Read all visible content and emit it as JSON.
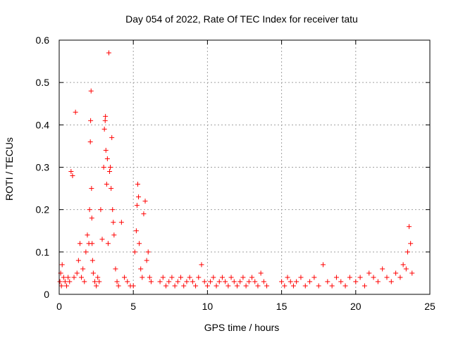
{
  "chart_data": {
    "type": "scatter",
    "title": "Day 054 of 2022, Rate Of TEC Index for receiver tatu",
    "xlabel": "GPS time / hours",
    "ylabel": "ROTI / TECUs",
    "xlim": [
      0,
      25
    ],
    "ylim": [
      0,
      0.6
    ],
    "xticks": [
      "0",
      "5",
      "10",
      "15",
      "20",
      "25"
    ],
    "yticks": [
      "0",
      "0.1",
      "0.2",
      "0.3",
      "0.4",
      "0.5",
      "0.6"
    ],
    "grid": true,
    "marker": "+",
    "marker_color": "#ff0000",
    "series": [
      {
        "name": "ROTI",
        "x": [
          0.05,
          0.1,
          0.15,
          0.2,
          0.3,
          0.4,
          0.5,
          0.6,
          0.7,
          0.8,
          0.9,
          1.0,
          1.1,
          1.2,
          1.3,
          1.4,
          1.5,
          1.6,
          1.7,
          1.8,
          1.9,
          2.0,
          2.05,
          2.1,
          2.12,
          2.15,
          2.18,
          2.2,
          2.22,
          2.25,
          2.3,
          2.4,
          2.5,
          2.6,
          2.7,
          2.8,
          2.9,
          3.0,
          3.05,
          3.1,
          3.12,
          3.15,
          3.2,
          3.25,
          3.3,
          3.35,
          3.4,
          3.45,
          3.5,
          3.55,
          3.6,
          3.65,
          3.7,
          3.8,
          3.9,
          4.0,
          4.2,
          4.4,
          4.6,
          4.8,
          5.0,
          5.1,
          5.2,
          5.25,
          5.3,
          5.35,
          5.4,
          5.5,
          5.6,
          5.7,
          5.8,
          5.9,
          6.0,
          6.1,
          6.2,
          6.8,
          7.0,
          7.2,
          7.4,
          7.6,
          7.8,
          8.0,
          8.2,
          8.4,
          8.6,
          8.8,
          9.0,
          9.2,
          9.4,
          9.6,
          9.8,
          10.0,
          10.2,
          10.4,
          10.6,
          10.8,
          11.0,
          11.2,
          11.4,
          11.6,
          11.8,
          12.0,
          12.2,
          12.4,
          12.6,
          12.8,
          13.0,
          13.2,
          13.4,
          13.6,
          13.8,
          14.0,
          15.0,
          15.2,
          15.4,
          15.6,
          15.8,
          16.0,
          16.3,
          16.6,
          16.9,
          17.2,
          17.5,
          17.8,
          18.1,
          18.4,
          18.7,
          19.0,
          19.3,
          19.6,
          20.0,
          20.3,
          20.6,
          20.9,
          21.2,
          21.5,
          21.8,
          22.1,
          22.4,
          22.7,
          23.0,
          23.2,
          23.4,
          23.5,
          23.6,
          23.7,
          23.8
        ],
        "y": [
          0.03,
          0.05,
          0.02,
          0.07,
          0.04,
          0.03,
          0.02,
          0.04,
          0.03,
          0.29,
          0.28,
          0.04,
          0.43,
          0.05,
          0.08,
          0.12,
          0.04,
          0.06,
          0.03,
          0.1,
          0.14,
          0.12,
          0.2,
          0.36,
          0.41,
          0.48,
          0.25,
          0.18,
          0.12,
          0.08,
          0.05,
          0.03,
          0.02,
          0.04,
          0.03,
          0.2,
          0.13,
          0.3,
          0.39,
          0.41,
          0.42,
          0.34,
          0.26,
          0.32,
          0.12,
          0.57,
          0.29,
          0.3,
          0.25,
          0.37,
          0.2,
          0.17,
          0.14,
          0.06,
          0.03,
          0.02,
          0.17,
          0.04,
          0.03,
          0.02,
          0.02,
          0.1,
          0.15,
          0.21,
          0.26,
          0.23,
          0.12,
          0.06,
          0.04,
          0.19,
          0.22,
          0.08,
          0.1,
          0.04,
          0.03,
          0.03,
          0.04,
          0.02,
          0.03,
          0.04,
          0.02,
          0.03,
          0.04,
          0.02,
          0.03,
          0.04,
          0.03,
          0.02,
          0.04,
          0.07,
          0.03,
          0.02,
          0.03,
          0.04,
          0.02,
          0.03,
          0.04,
          0.03,
          0.02,
          0.04,
          0.03,
          0.02,
          0.03,
          0.04,
          0.02,
          0.03,
          0.04,
          0.03,
          0.02,
          0.05,
          0.03,
          0.02,
          0.03,
          0.02,
          0.04,
          0.03,
          0.02,
          0.03,
          0.04,
          0.02,
          0.03,
          0.04,
          0.02,
          0.07,
          0.03,
          0.02,
          0.04,
          0.03,
          0.02,
          0.04,
          0.03,
          0.04,
          0.02,
          0.05,
          0.04,
          0.03,
          0.06,
          0.04,
          0.03,
          0.05,
          0.04,
          0.07,
          0.06,
          0.1,
          0.16,
          0.12,
          0.05
        ]
      }
    ]
  }
}
